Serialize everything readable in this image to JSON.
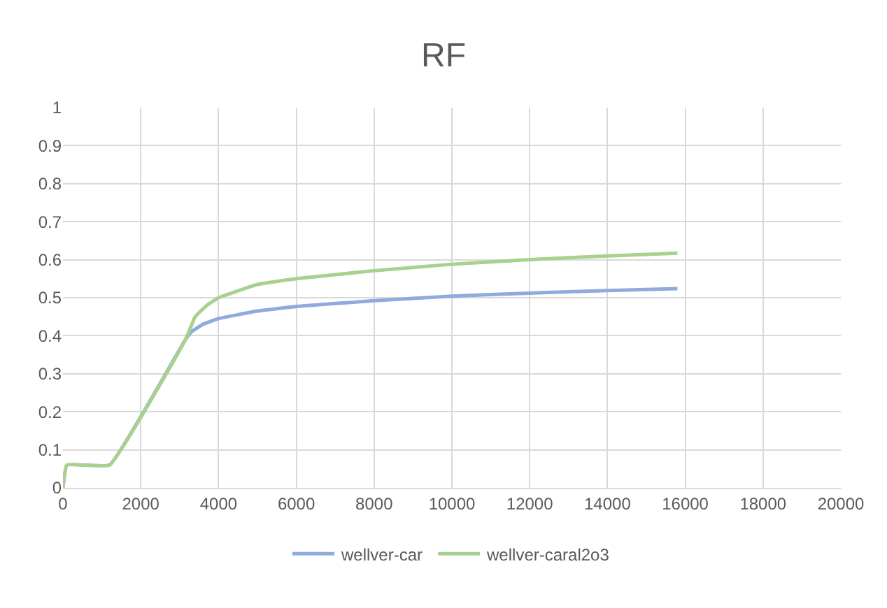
{
  "chart_data": {
    "type": "line",
    "title": "RF",
    "xlim": [
      0,
      20000
    ],
    "xticks": [
      0,
      2000,
      4000,
      6000,
      8000,
      10000,
      12000,
      14000,
      16000,
      18000,
      20000
    ],
    "ylim": [
      0,
      1
    ],
    "yticks": [
      0,
      0.1,
      0.2,
      0.3,
      0.4,
      0.5,
      0.6,
      0.7,
      0.8,
      0.9,
      1
    ],
    "grid": true,
    "legend": "bottom",
    "marker": "none",
    "line_style": "solid",
    "series": [
      {
        "name": "wellver-car",
        "color": "#8faadc",
        "x": [
          0,
          100,
          1200,
          3150,
          3300,
          3600,
          4000,
          5000,
          6000,
          8000,
          10000,
          12000,
          14000,
          15800
        ],
        "values": [
          0,
          0.06,
          0.06,
          0.39,
          0.41,
          0.43,
          0.445,
          0.465,
          0.477,
          0.492,
          0.504,
          0.512,
          0.519,
          0.524
        ]
      },
      {
        "name": "wellver-caral2o3",
        "color": "#a9d18e",
        "x": [
          0,
          100,
          1200,
          3150,
          3400,
          3700,
          4000,
          5000,
          6000,
          8000,
          10000,
          12000,
          14000,
          15800
        ],
        "values": [
          0,
          0.06,
          0.06,
          0.39,
          0.45,
          0.48,
          0.5,
          0.535,
          0.55,
          0.571,
          0.588,
          0.6,
          0.61,
          0.617
        ]
      }
    ]
  }
}
